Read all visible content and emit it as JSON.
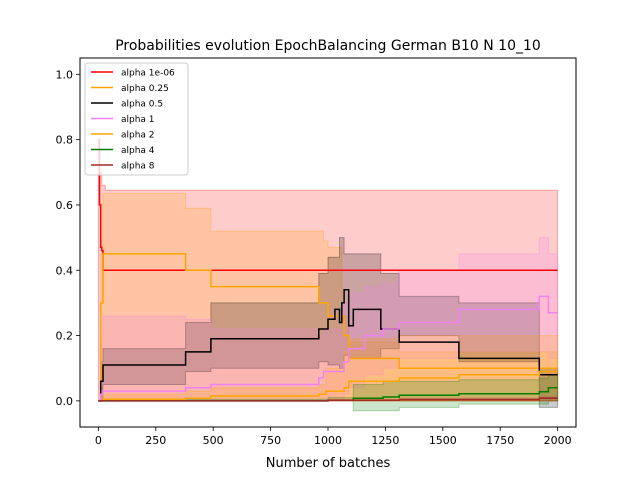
{
  "chart_data": {
    "type": "line",
    "title": "Probabilities evolution EpochBalancing German B10 N 10_10",
    "xlabel": "Number of batches",
    "ylabel": "",
    "xlim": [
      -80,
      2080
    ],
    "ylim": [
      -0.08,
      1.05
    ],
    "xticks": [
      0,
      250,
      500,
      750,
      1000,
      1250,
      1500,
      1750,
      2000
    ],
    "yticks": [
      0.0,
      0.2,
      0.4,
      0.6,
      0.8,
      1.0
    ],
    "grid": false,
    "legend_position": "top-left",
    "series": [
      {
        "name": "alpha 1e-06",
        "color": "#ff0000",
        "x": [
          0,
          5,
          10,
          15,
          20,
          30,
          2000
        ],
        "y": [
          0.8,
          0.6,
          0.47,
          0.46,
          0.4,
          0.4,
          0.4
        ],
        "band": {
          "x": [
            0,
            5,
            15,
            30,
            2000
          ],
          "lower": [
            0.0,
            0.0,
            0.0,
            0.0,
            0.0
          ],
          "upper": [
            0.8,
            0.7,
            0.66,
            0.645,
            0.645
          ]
        }
      },
      {
        "name": "alpha 0.25",
        "color": "#ffa500",
        "x": [
          0,
          10,
          20,
          380,
          490,
          960,
          1000,
          1070,
          1090,
          1310,
          2000
        ],
        "y": [
          0.0,
          0.3,
          0.45,
          0.4,
          0.35,
          0.3,
          0.26,
          0.2,
          0.13,
          0.1,
          0.1
        ],
        "band": {
          "x": [
            0,
            10,
            20,
            380,
            490,
            980,
            1000,
            1060,
            1090,
            1310,
            2000
          ],
          "lower": [
            0.0,
            0.0,
            0.0,
            0.0,
            0.0,
            0.0,
            0.0,
            0.0,
            0.0,
            0.0,
            0.0
          ],
          "upper": [
            0.0,
            0.45,
            0.635,
            0.59,
            0.52,
            0.49,
            0.47,
            0.26,
            0.18,
            0.15,
            0.15
          ]
        }
      },
      {
        "name": "alpha 0.5",
        "color": "#000000",
        "x": [
          0,
          10,
          20,
          380,
          490,
          960,
          1000,
          1030,
          1050,
          1060,
          1070,
          1090,
          1110,
          1230,
          1310,
          1570,
          1920,
          2000
        ],
        "y": [
          0.0,
          0.06,
          0.11,
          0.15,
          0.19,
          0.22,
          0.25,
          0.28,
          0.24,
          0.3,
          0.34,
          0.23,
          0.28,
          0.22,
          0.18,
          0.13,
          0.08,
          0.08
        ],
        "band": {
          "x": [
            0,
            10,
            20,
            380,
            490,
            960,
            1000,
            1050,
            1070,
            1090,
            1230,
            1310,
            1570,
            1920,
            2000
          ],
          "lower": [
            0.0,
            0.0,
            0.05,
            0.09,
            0.1,
            0.12,
            0.11,
            0.1,
            0.14,
            0.13,
            0.16,
            0.2,
            0.12,
            -0.02,
            -0.02
          ],
          "upper": [
            0.0,
            0.12,
            0.16,
            0.24,
            0.3,
            0.39,
            0.44,
            0.5,
            0.45,
            0.45,
            0.39,
            0.32,
            0.3,
            0.1,
            0.1
          ]
        }
      },
      {
        "name": "alpha 1",
        "color": "#ee82ee",
        "x": [
          0,
          10,
          20,
          380,
          490,
          960,
          980,
          1070,
          1090,
          1160,
          1240,
          1310,
          1570,
          1920,
          1960,
          2000
        ],
        "y": [
          0.0,
          0.02,
          0.03,
          0.04,
          0.05,
          0.07,
          0.09,
          0.12,
          0.16,
          0.2,
          0.22,
          0.24,
          0.28,
          0.32,
          0.27,
          0.27
        ],
        "band": {
          "x": [
            0,
            10,
            20,
            380,
            490,
            960,
            980,
            1070,
            1090,
            1160,
            1240,
            1310,
            1570,
            1920,
            1960,
            2000
          ],
          "lower": [
            0.0,
            0.0,
            0.0,
            0.0,
            0.0,
            0.0,
            0.0,
            0.02,
            0.04,
            0.08,
            0.1,
            0.13,
            0.15,
            0.15,
            0.13,
            0.13
          ],
          "upper": [
            0.0,
            0.2,
            0.26,
            0.25,
            0.22,
            0.2,
            0.22,
            0.3,
            0.33,
            0.35,
            0.36,
            0.4,
            0.45,
            0.5,
            0.45,
            0.45
          ]
        }
      },
      {
        "name": "alpha 2",
        "color": "#ffa500",
        "x": [
          0,
          20,
          380,
          490,
          960,
          990,
          1070,
          1090,
          1310,
          1570,
          1920,
          2000
        ],
        "y": [
          0.0,
          0.005,
          0.008,
          0.015,
          0.02,
          0.03,
          0.04,
          0.06,
          0.07,
          0.08,
          0.09,
          0.09
        ],
        "band": {
          "x": [
            0,
            20,
            380,
            490,
            960,
            990,
            1070,
            1090,
            1310,
            1570,
            1920,
            2000
          ],
          "lower": [
            0.0,
            0.0,
            0.0,
            0.0,
            0.0,
            0.0,
            0.0,
            0.0,
            0.0,
            0.0,
            0.0,
            0.0
          ],
          "upper": [
            0.0,
            0.02,
            0.03,
            0.04,
            0.05,
            0.1,
            0.15,
            0.19,
            0.2,
            0.2,
            0.2,
            0.2
          ]
        }
      },
      {
        "name": "alpha 4",
        "color": "#008000",
        "x": [
          0,
          20,
          1000,
          1110,
          1240,
          1310,
          1570,
          1920,
          1960,
          2000
        ],
        "y": [
          0.0,
          0.0,
          0.002,
          0.008,
          0.012,
          0.017,
          0.022,
          0.028,
          0.04,
          0.04
        ],
        "band": {
          "x": [
            0,
            20,
            1000,
            1110,
            1240,
            1310,
            1570,
            1920,
            1960,
            2000
          ],
          "lower": [
            0.0,
            0.0,
            0.0,
            -0.03,
            -0.03,
            -0.02,
            -0.01,
            -0.01,
            0.0,
            0.0
          ],
          "upper": [
            0.0,
            0.005,
            0.01,
            0.05,
            0.06,
            0.06,
            0.065,
            0.07,
            0.08,
            0.08
          ]
        }
      },
      {
        "name": "alpha 8",
        "color": "#a52a2a",
        "x": [
          0,
          20,
          1000,
          1310,
          1920,
          2000
        ],
        "y": [
          0.0,
          0.0,
          0.002,
          0.004,
          0.008,
          0.008
        ],
        "band": {
          "x": [
            0,
            1000,
            1310,
            1920,
            2000
          ],
          "lower": [
            0.0,
            0.0,
            0.0,
            0.0,
            0.0
          ],
          "upper": [
            0.0,
            0.004,
            0.008,
            0.012,
            0.012
          ]
        }
      }
    ]
  }
}
